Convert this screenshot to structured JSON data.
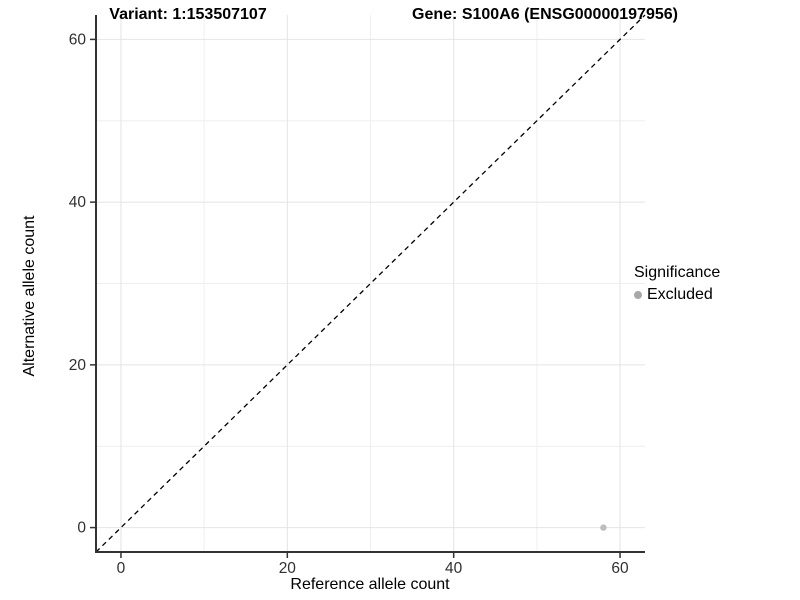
{
  "chart_data": {
    "type": "scatter",
    "title_left": "Variant: 1:153507107",
    "title_right": "Gene: S100A6 (ENSG00000197956)",
    "xlabel": "Reference allele count",
    "ylabel": "Alternative allele count",
    "xlim": [
      -3,
      63
    ],
    "ylim": [
      -3,
      63
    ],
    "xticks": [
      0,
      20,
      40,
      60
    ],
    "yticks": [
      0,
      20,
      40,
      60
    ],
    "minor_ticks": [
      10,
      30,
      50
    ],
    "grid": true,
    "points": [
      {
        "x": 58,
        "y": 0,
        "series": "Excluded"
      }
    ],
    "identity_line": {
      "style": "dashed",
      "x1": -3,
      "y1": -3,
      "x2": 63,
      "y2": 63
    },
    "legend": {
      "title": "Significance",
      "position": "right",
      "items": [
        {
          "label": "Excluded",
          "color": "#a8a8a8"
        }
      ]
    },
    "colors": {
      "point": "#bdbdbd",
      "grid_major": "#e4e4e4",
      "grid_minor": "#efefef",
      "axis_line": "#333333",
      "tick_label": "#303030",
      "dashed_line": "#000000"
    }
  }
}
